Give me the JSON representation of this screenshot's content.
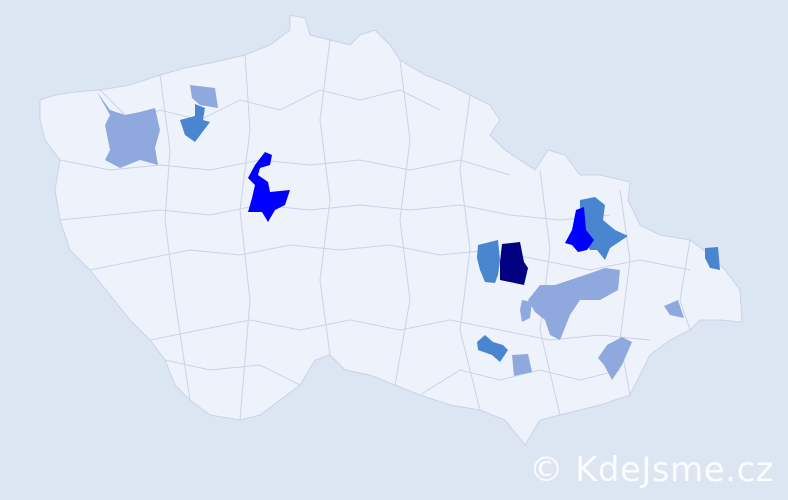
{
  "map": {
    "colors": {
      "background": "#dce5f2",
      "land": "#eef2fa",
      "border": "#c9d3ea",
      "level_1": "#8fa8dd",
      "level_2": "#4a86d0",
      "level_3": "#0000ff",
      "level_4": "#000080"
    },
    "highlighted_regions": [
      {
        "id": "nw-large",
        "level": 1
      },
      {
        "id": "nw-small-top",
        "level": 1
      },
      {
        "id": "nw-mid",
        "level": 2
      },
      {
        "id": "central-west",
        "level": 3
      },
      {
        "id": "vysocina-a",
        "level": 2
      },
      {
        "id": "vysocina-b",
        "level": 4
      },
      {
        "id": "moravia-north-a",
        "level": 2
      },
      {
        "id": "moravia-north-b",
        "level": 3
      },
      {
        "id": "moravia-center",
        "level": 1
      },
      {
        "id": "moravia-small-w",
        "level": 1
      },
      {
        "id": "east-small",
        "level": 2
      },
      {
        "id": "east-small-2",
        "level": 1
      },
      {
        "id": "south-a",
        "level": 2
      },
      {
        "id": "south-b",
        "level": 1
      },
      {
        "id": "south-c",
        "level": 1
      }
    ]
  },
  "watermark": "© KdeJsme.cz"
}
